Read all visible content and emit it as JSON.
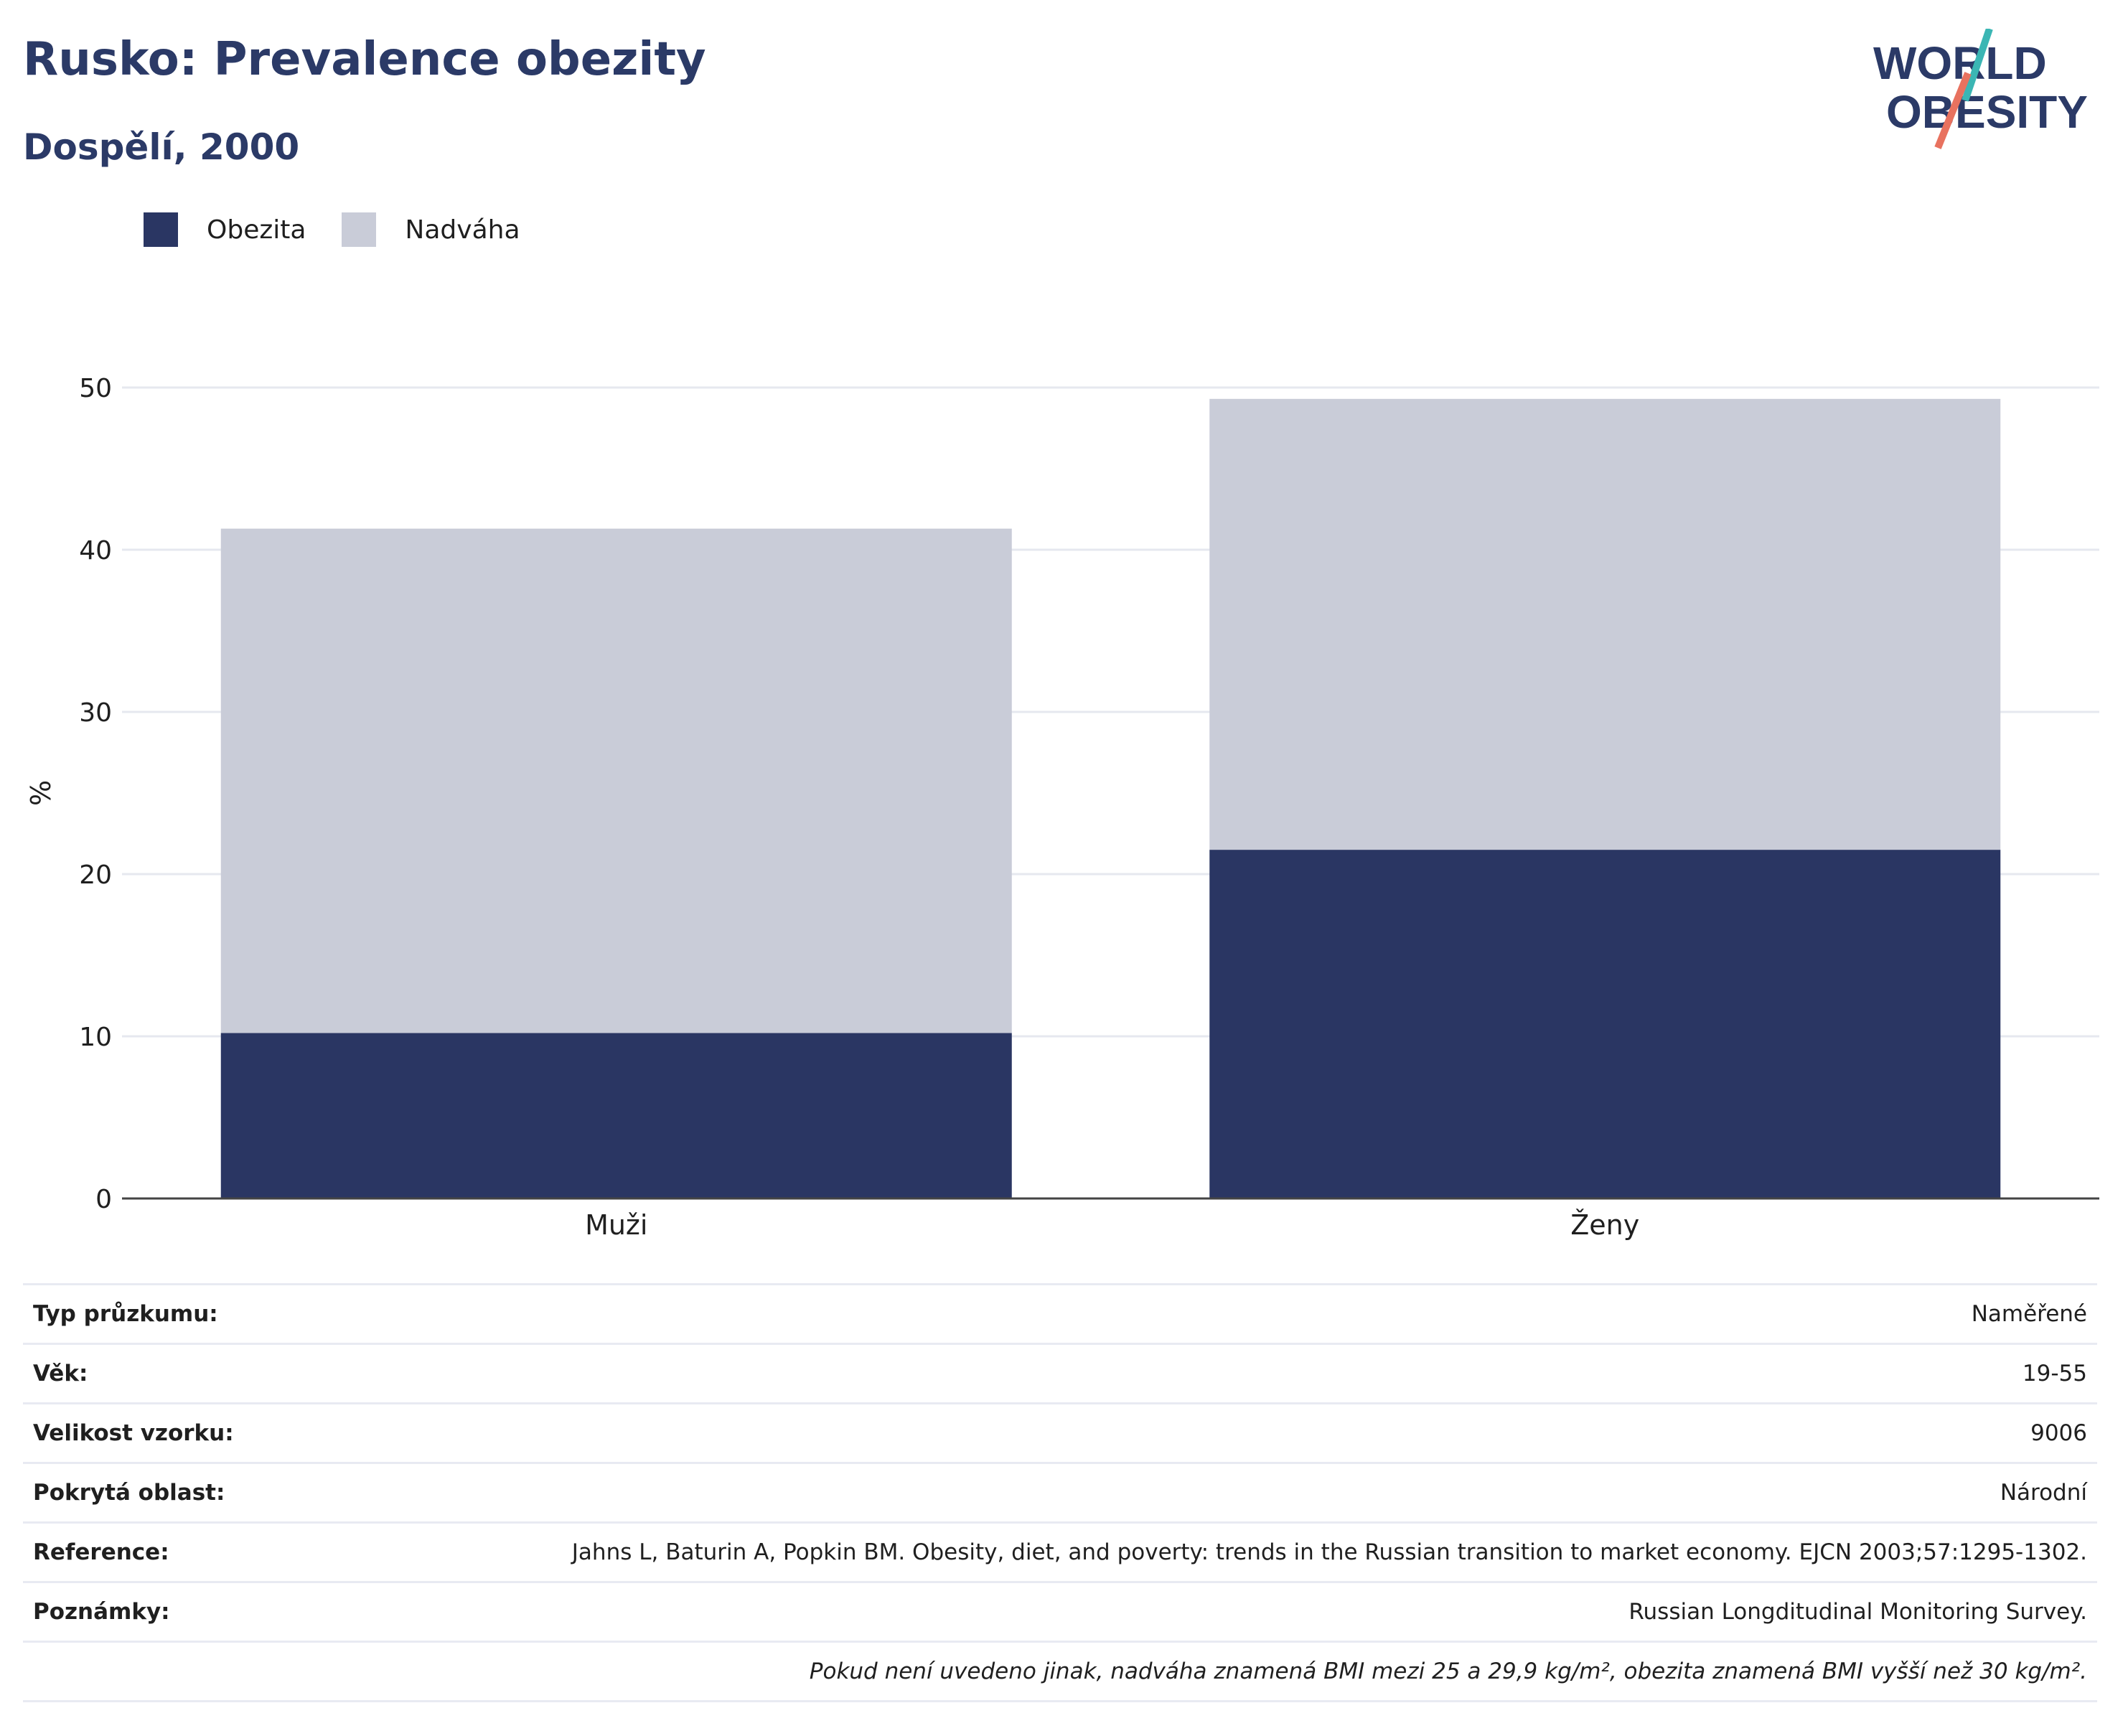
{
  "header": {
    "title": "Rusko: Prevalence obezity",
    "subtitle": "Dospělí, 2000"
  },
  "logo": {
    "line1": "WORLD",
    "line2": "OBESITY",
    "accent_teal": "#3bb6b4",
    "accent_coral": "#e8725f"
  },
  "legend": [
    {
      "label": "Obezita",
      "color": "#2a3663"
    },
    {
      "label": "Nadváha",
      "color": "#c9ccd8"
    }
  ],
  "chart_data": {
    "type": "bar",
    "stacked": true,
    "categories": [
      "Muži",
      "Ženy"
    ],
    "series": [
      {
        "name": "Obezita",
        "values": [
          10.2,
          21.5
        ],
        "color": "#2a3663"
      },
      {
        "name": "Nadváha",
        "values": [
          31.1,
          27.8
        ],
        "color": "#c9ccd8"
      }
    ],
    "ylabel": "%",
    "ylim": [
      0,
      50
    ],
    "yticks": [
      0,
      10,
      20,
      30,
      40,
      50
    ],
    "grid": true,
    "legend_position": "top-left"
  },
  "info": [
    {
      "key": "Typ průzkumu:",
      "value": "Naměřené"
    },
    {
      "key": "Věk:",
      "value": "19-55"
    },
    {
      "key": "Velikost vzorku:",
      "value": "9006"
    },
    {
      "key": "Pokrytá oblast:",
      "value": "Národní"
    },
    {
      "key": "Reference:",
      "value": "Jahns L, Baturin A, Popkin BM. Obesity, diet, and poverty: trends in the Russian transition to market economy. EJCN 2003;57:1295-1302."
    },
    {
      "key": "Poznámky:",
      "value": "Russian Longditudinal Monitoring Survey."
    }
  ],
  "footnote": "Pokud není uvedeno jinak, nadváha znamená BMI mezi 25 a 29,9 kg/m², obezita znamená BMI vyšší než 30 kg/m²."
}
